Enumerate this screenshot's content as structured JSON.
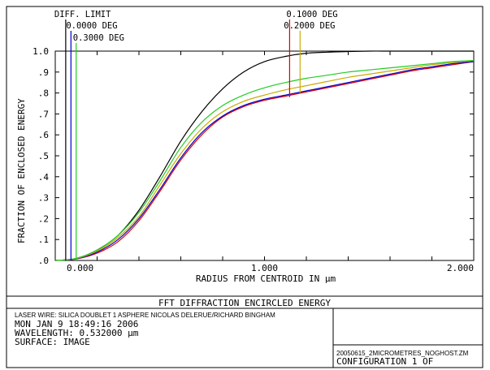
{
  "chart_data": {
    "type": "line",
    "title": "FFT DIFFRACTION ENCIRCLED ENERGY",
    "xlabel": "RADIUS FROM CENTROID IN µm",
    "ylabel": "FRACTION OF ENCLOSED ENERGY",
    "xlim": [
      0,
      2.0
    ],
    "ylim": [
      0,
      1.0
    ],
    "x_tick_labels": [
      "0.000",
      "1.000",
      "2.000"
    ],
    "x_tick_values": [
      0,
      1.0,
      2.0
    ],
    "y_tick_labels": [
      ".0",
      ".1",
      ".2",
      ".3",
      ".4",
      ".5",
      ".6",
      ".7",
      ".8",
      ".9",
      "1.0"
    ],
    "y_tick_values": [
      0,
      0.1,
      0.2,
      0.3,
      0.4,
      0.5,
      0.6,
      0.7,
      0.8,
      0.9,
      1.0
    ],
    "series": [
      {
        "name": "DIFF. LIMIT",
        "color": "#000000",
        "x": [
          0,
          0.1,
          0.2,
          0.3,
          0.4,
          0.5,
          0.6,
          0.7,
          0.8,
          0.9,
          1.0,
          1.1,
          1.2,
          1.3,
          1.4,
          1.5,
          1.6,
          1.7,
          1.8,
          1.9,
          2.0
        ],
        "y": [
          0,
          0.01,
          0.05,
          0.12,
          0.24,
          0.4,
          0.57,
          0.71,
          0.82,
          0.9,
          0.95,
          0.975,
          0.99,
          0.995,
          0.998,
          1.0,
          1.0,
          1.0,
          1.0,
          1.0,
          1.0
        ]
      },
      {
        "name": "0.0000 DEG",
        "color": "#0000cc",
        "x": [
          0,
          0.1,
          0.2,
          0.3,
          0.4,
          0.5,
          0.6,
          0.7,
          0.8,
          0.9,
          1.0,
          1.1,
          1.2,
          1.3,
          1.4,
          1.5,
          1.6,
          1.7,
          1.8,
          1.9,
          2.0
        ],
        "y": [
          0,
          0.008,
          0.04,
          0.1,
          0.2,
          0.34,
          0.49,
          0.61,
          0.69,
          0.74,
          0.77,
          0.79,
          0.81,
          0.83,
          0.85,
          0.87,
          0.89,
          0.91,
          0.925,
          0.94,
          0.95
        ]
      },
      {
        "name": "0.1000 DEG",
        "color": "#dd0000",
        "x": [
          0,
          0.1,
          0.2,
          0.3,
          0.4,
          0.5,
          0.6,
          0.7,
          0.8,
          0.9,
          1.0,
          1.1,
          1.2,
          1.3,
          1.4,
          1.5,
          1.6,
          1.7,
          1.8,
          1.9,
          2.0
        ],
        "y": [
          0,
          0.007,
          0.035,
          0.09,
          0.19,
          0.33,
          0.48,
          0.6,
          0.685,
          0.735,
          0.765,
          0.785,
          0.805,
          0.825,
          0.845,
          0.865,
          0.885,
          0.905,
          0.92,
          0.935,
          0.95
        ]
      },
      {
        "name": "0.2000 DEG",
        "color": "#ccaa00",
        "x": [
          0,
          0.1,
          0.2,
          0.3,
          0.4,
          0.5,
          0.6,
          0.7,
          0.8,
          0.9,
          1.0,
          1.1,
          1.2,
          1.3,
          1.4,
          1.5,
          1.6,
          1.7,
          1.8,
          1.9,
          2.0
        ],
        "y": [
          0,
          0.009,
          0.045,
          0.11,
          0.21,
          0.36,
          0.51,
          0.63,
          0.71,
          0.76,
          0.79,
          0.815,
          0.835,
          0.855,
          0.875,
          0.89,
          0.905,
          0.92,
          0.935,
          0.945,
          0.955
        ]
      },
      {
        "name": "0.3000 DEG",
        "color": "#22cc22",
        "x": [
          0,
          0.1,
          0.2,
          0.3,
          0.4,
          0.5,
          0.6,
          0.7,
          0.8,
          0.9,
          1.0,
          1.1,
          1.2,
          1.3,
          1.4,
          1.5,
          1.6,
          1.7,
          1.8,
          1.9,
          2.0
        ],
        "y": [
          0,
          0.01,
          0.05,
          0.12,
          0.23,
          0.38,
          0.54,
          0.66,
          0.74,
          0.79,
          0.825,
          0.85,
          0.87,
          0.885,
          0.9,
          0.91,
          0.92,
          0.93,
          0.94,
          0.95,
          0.955
        ]
      }
    ],
    "legend_markers": [
      {
        "name": "DIFF. LIMIT",
        "color": "#000000",
        "x": 0.05
      },
      {
        "name": "0.0000 DEG",
        "color": "#0000cc",
        "x": 0.075
      },
      {
        "name": "0.3000 DEG",
        "color": "#22cc22",
        "x": 0.1
      },
      {
        "name": "0.1000 DEG",
        "color": "#dd0000",
        "x": 1.12
      },
      {
        "name": "0.2000 DEG",
        "color": "#ccaa00",
        "x": 1.17
      }
    ],
    "legend_marker_tops": [
      0.93,
      0.8,
      0.8,
      0.78,
      0.8
    ],
    "grid": false
  },
  "footer": {
    "line1": "LASER WIRE: SILICA DOUBLET 1 ASPHERE NICOLAS DELERUE/RICHARD BINGHAM",
    "line2": "MON JAN  9 18:49:16 2006",
    "line3": "WAVELENGTH: 0.532000 µm",
    "line4": "SURFACE: IMAGE",
    "file": "20050615_2MICROMETRES_NOGHOST.ZM",
    "config": "CONFIGURATION  1  OF"
  }
}
